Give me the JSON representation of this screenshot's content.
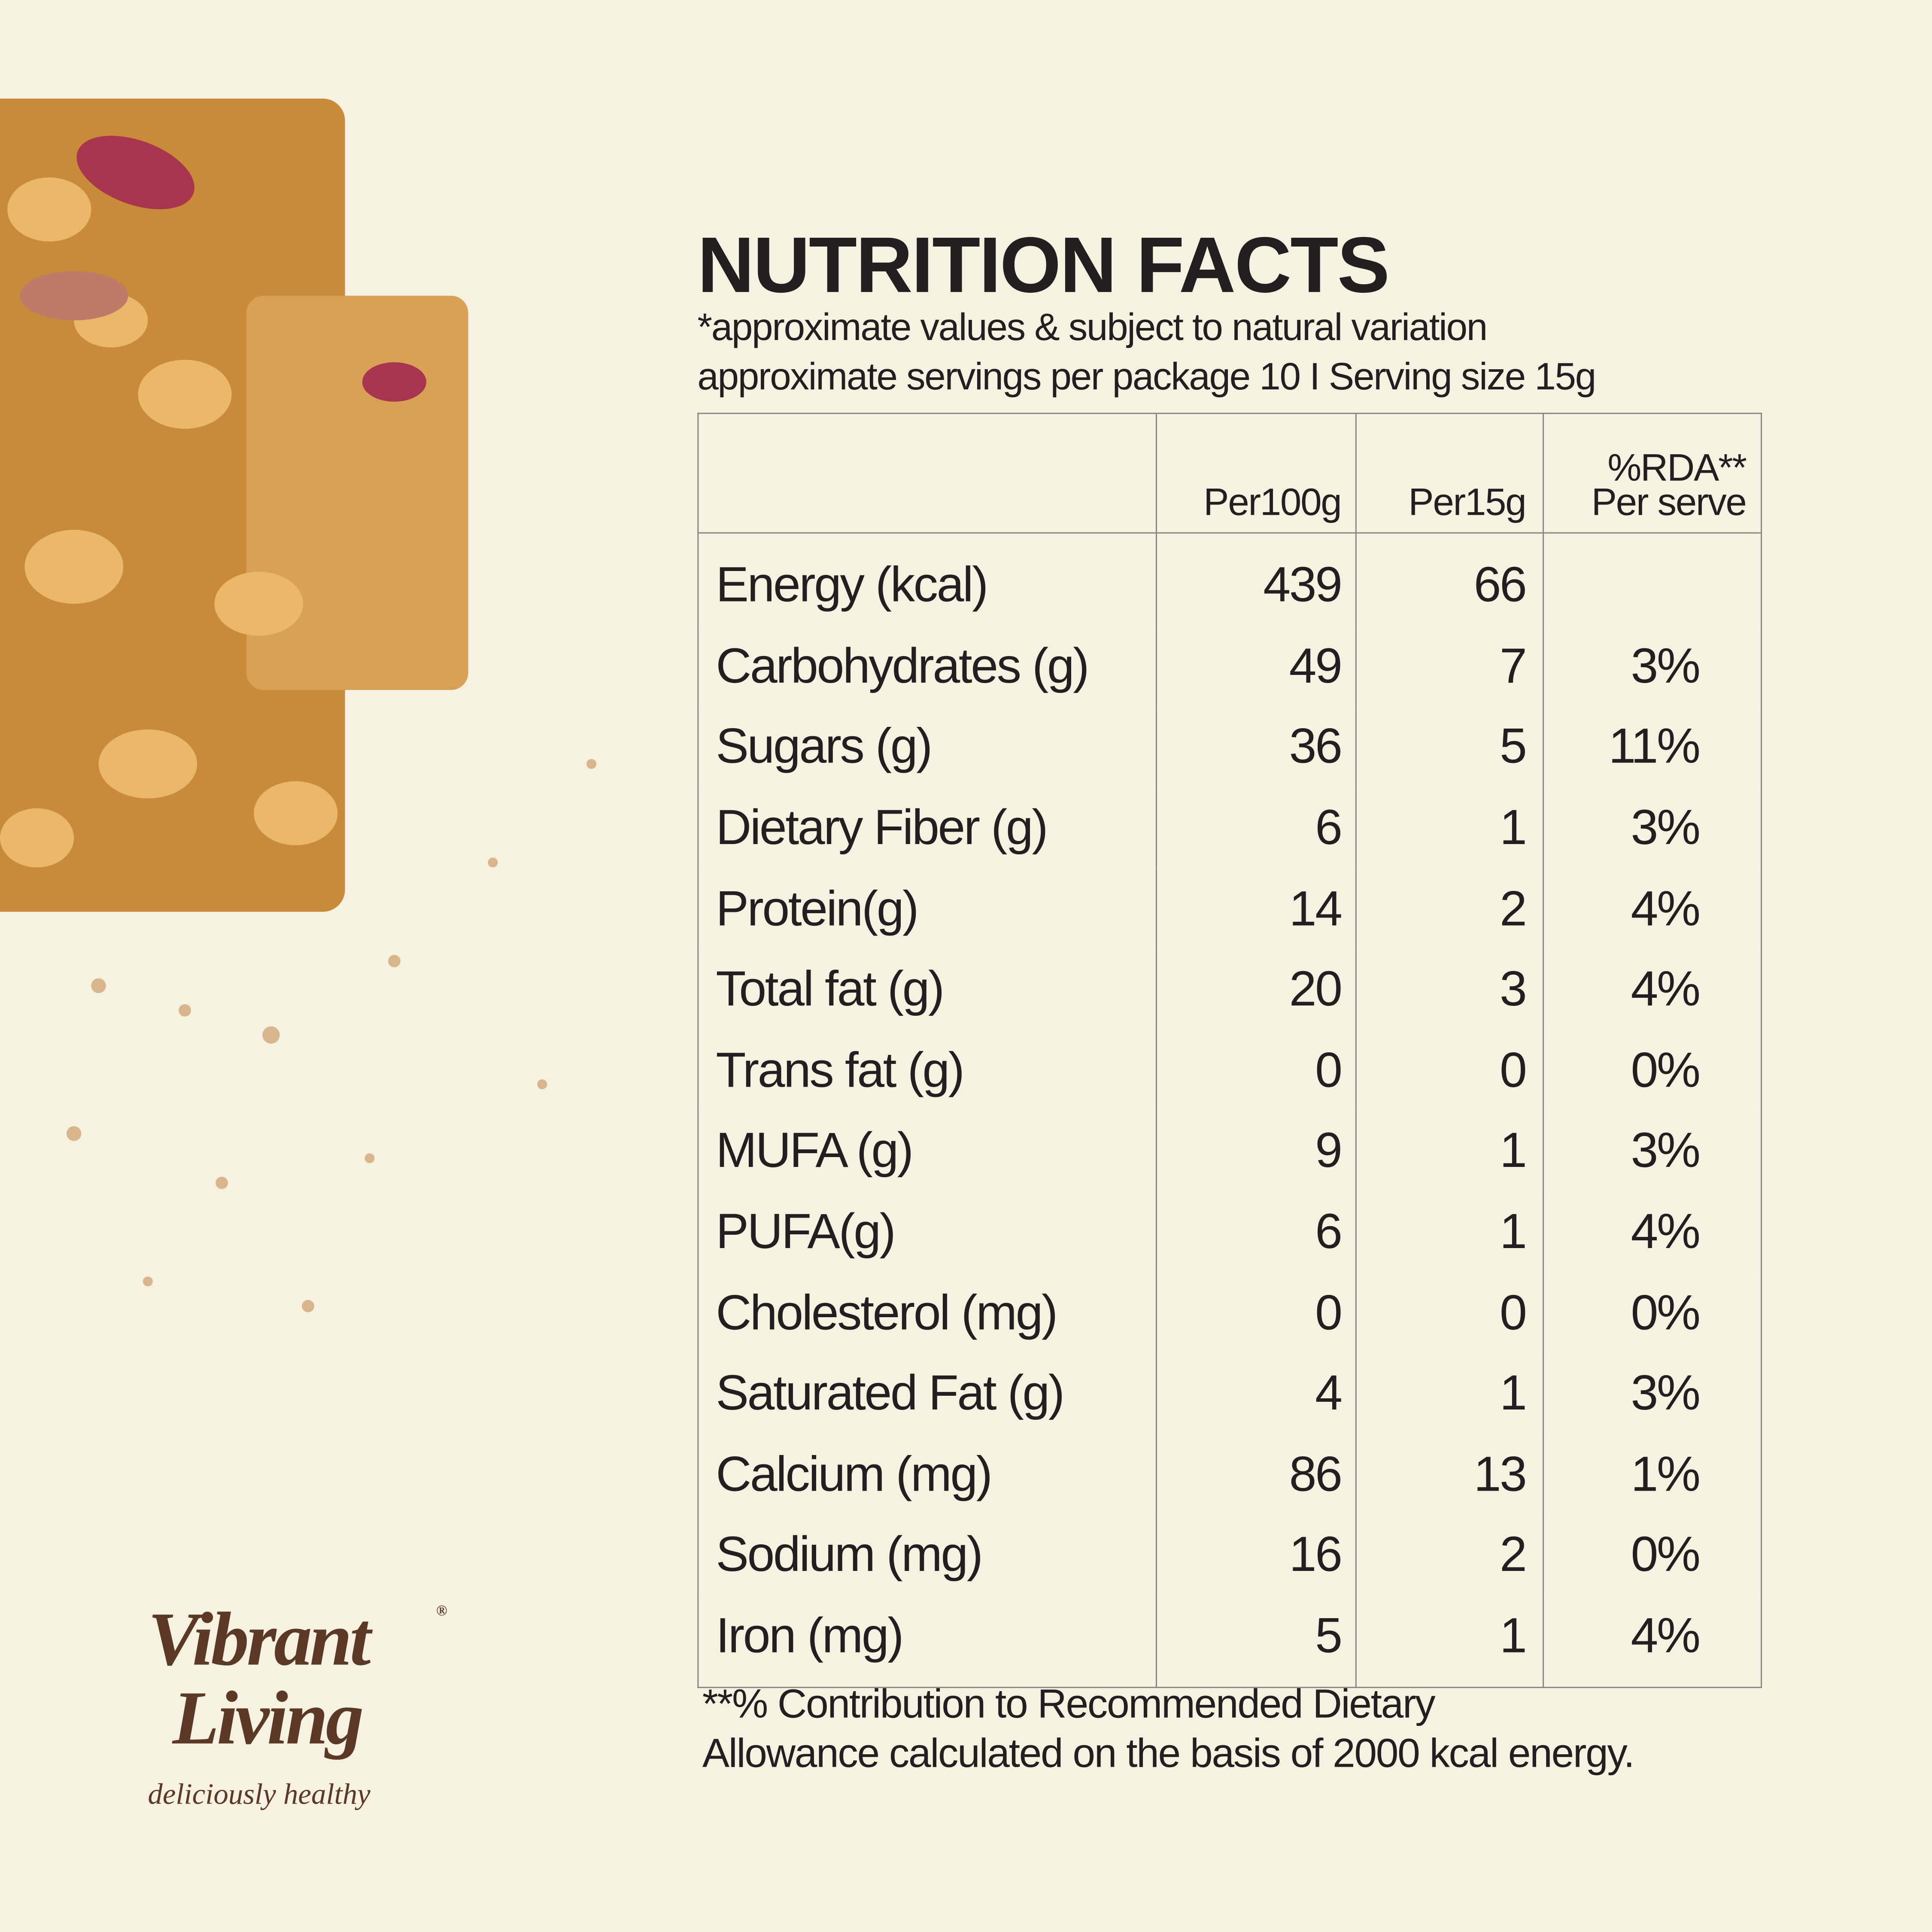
{
  "header": {
    "title": "NUTRITION FACTS",
    "subtitle": [
      "*approximate values & subject to natural variation",
      "approximate servings per package 10 I Serving size 15g"
    ]
  },
  "table": {
    "columns": [
      "Per100g",
      "Per15g",
      [
        "%RDA**",
        "Per serve"
      ]
    ],
    "rows": [
      [
        "Energy (kcal)",
        439,
        66,
        null
      ],
      [
        "Carbohydrates (g)",
        49,
        7,
        "3%"
      ],
      [
        "Sugars (g)",
        36,
        5,
        "11%"
      ],
      [
        "Dietary Fiber (g)",
        6,
        1,
        "3%"
      ],
      [
        "Protein(g)",
        14,
        2,
        "4%"
      ],
      [
        "Total fat (g)",
        20,
        3,
        "4%"
      ],
      [
        "Trans fat (g)",
        0,
        0,
        "0%"
      ],
      [
        "MUFA (g)",
        9,
        1,
        "3%"
      ],
      [
        "PUFA(g)",
        6,
        1,
        "4%"
      ],
      [
        "Cholesterol (mg)",
        0,
        0,
        "0%"
      ],
      [
        "Saturated Fat (g)",
        4,
        1,
        "3%"
      ],
      [
        "Calcium (mg)",
        86,
        13,
        "1%"
      ],
      [
        "Sodium (mg)",
        16,
        2,
        "0%"
      ],
      [
        "Iron (mg)",
        5,
        1,
        "4%"
      ]
    ]
  },
  "footnote": [
    "**% Contribution to Recommended Dietary",
    "Allowance calculated on the basis of 2000 kcal energy."
  ],
  "brand": {
    "name": [
      "Vibrant",
      "Living"
    ],
    "mark": "®",
    "tagline": "deliciously healthy"
  }
}
